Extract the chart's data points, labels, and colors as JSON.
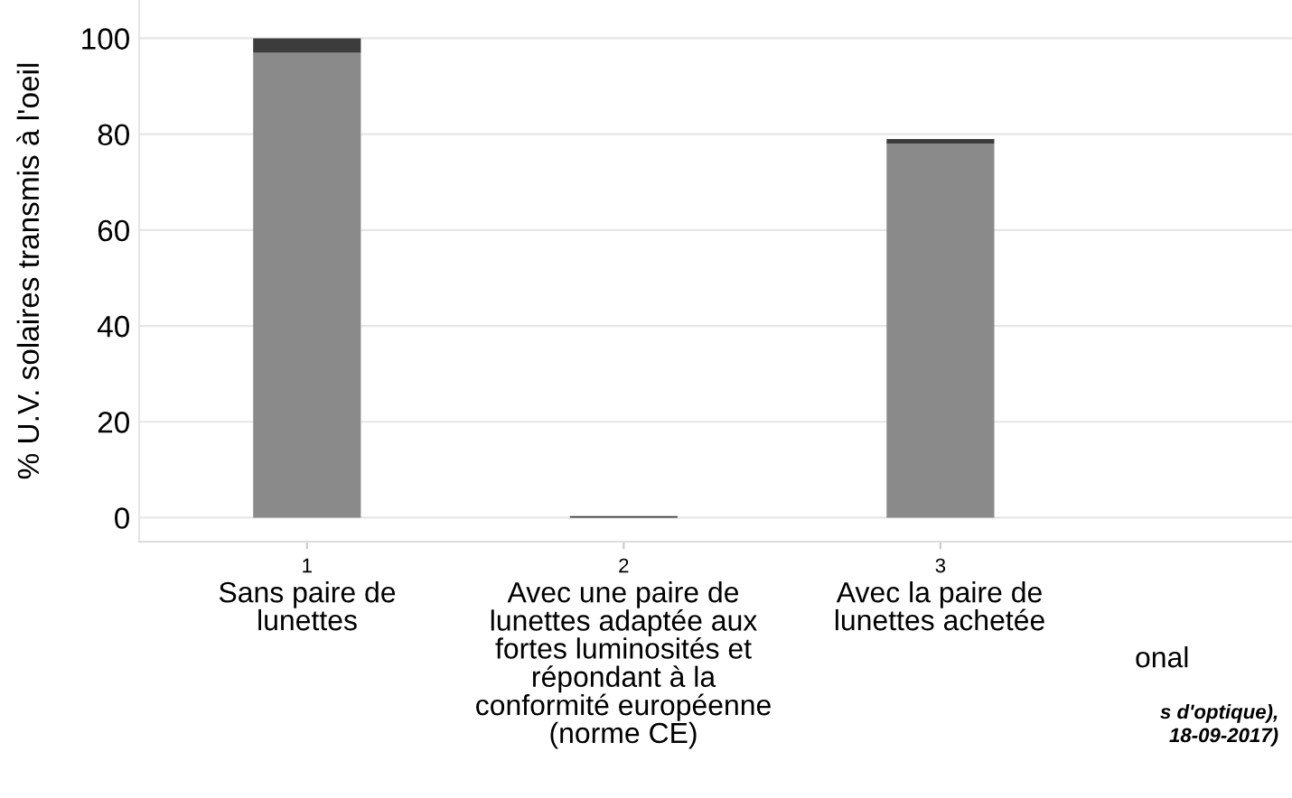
{
  "chart_data": {
    "type": "bar",
    "stacked": true,
    "categories": [
      "1",
      "2",
      "3"
    ],
    "series": [
      {
        "color": "#8a8a8a",
        "values": [
          97,
          0,
          78
        ]
      },
      {
        "color": "#3c3c3c",
        "values": [
          3,
          0.3,
          1
        ]
      }
    ],
    "ylabel": "% U.V. solaires transmis à l'oeil",
    "ylim": [
      -5,
      108
    ],
    "yticks": [
      0,
      20,
      40,
      60,
      80,
      100
    ],
    "grid": "y",
    "legend": false,
    "annotations": [
      "Sans paire de\nlunettes",
      "Avec une paire de\nlunettes adaptée aux\nfortes luminosités et\nrépondant à la\nconformité européenne\n(norme CE)",
      "Avec la paire de\nlunettes achetée",
      "onal",
      "s d'optique),",
      "18-09-2017)"
    ]
  }
}
